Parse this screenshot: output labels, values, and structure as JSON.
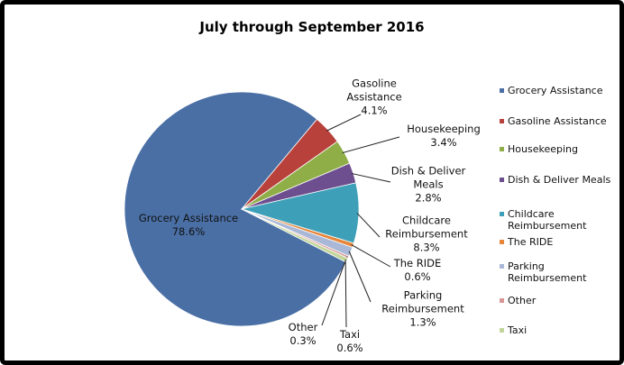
{
  "chart_data": {
    "type": "pie",
    "title": "July through September 2016",
    "categories": [
      "Grocery Assistance",
      "Gasoline Assistance",
      "Housekeeping",
      "Dish & Deliver Meals",
      "Childcare Reimbursement",
      "The RIDE",
      "Parking Reimbursement",
      "Other",
      "Taxi"
    ],
    "values": [
      78.6,
      4.1,
      3.4,
      2.8,
      8.3,
      0.6,
      1.3,
      0.3,
      0.6
    ],
    "value_labels": [
      "78.6%",
      "4.1%",
      "3.4%",
      "2.8%",
      "8.3%",
      "0.6%",
      "1.3%",
      "0.3%",
      "0.6%"
    ],
    "colors": [
      "#4a6fa5",
      "#b8413c",
      "#8fae47",
      "#6d4e8f",
      "#3ea0b8",
      "#e6863a",
      "#a9b8d6",
      "#d99694",
      "#c3d69b"
    ],
    "legend": "right"
  }
}
